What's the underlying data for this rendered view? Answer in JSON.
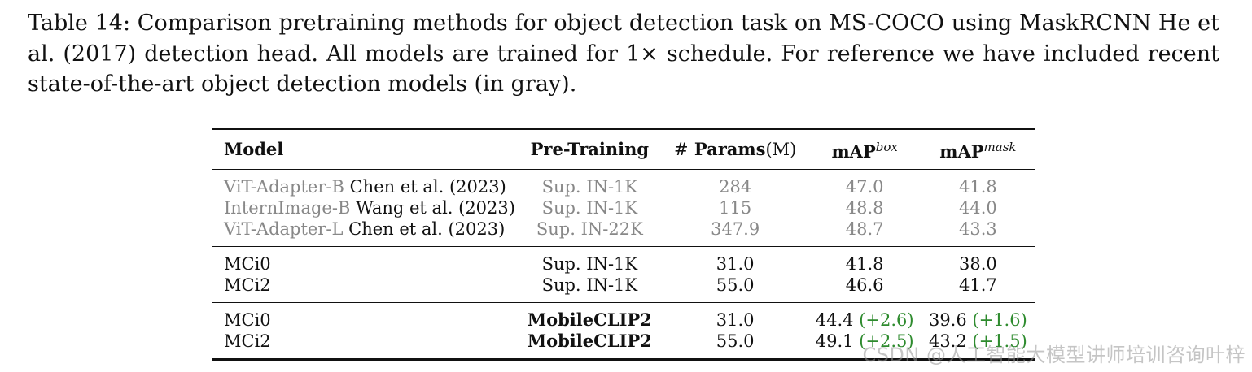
{
  "caption": "Table 14: Comparison pretraining methods for object detection task on MS-COCO using MaskRCNN He et al. (2017) detection head. All models are trained for 1× schedule. For reference we have included recent state-of-the-art object detection models (in gray).",
  "header": {
    "model": "Model",
    "pretraining": "Pre-Training",
    "params_hash": "#",
    "params_label": "Params",
    "params_unit": "(M)",
    "map_label": "mAP",
    "box_sup": "box",
    "mask_sup": "mask"
  },
  "colors": {
    "gray_rows": "#888888",
    "gain": "#2e8b2e",
    "watermark": "#969696"
  },
  "sota_rows": [
    {
      "model": "ViT-Adapter-B",
      "ref": "Chen et al. (2023)",
      "pretraining": "Sup. IN-1K",
      "params": "284",
      "box": "47.0",
      "mask": "41.8"
    },
    {
      "model": "InternImage-B",
      "ref": "Wang et al. (2023)",
      "pretraining": "Sup. IN-1K",
      "params": "115",
      "box": "48.8",
      "mask": "44.0"
    },
    {
      "model": "ViT-Adapter-L",
      "ref": "Chen et al. (2023)",
      "pretraining": "Sup. IN-22K",
      "params": "347.9",
      "box": "48.7",
      "mask": "43.3"
    }
  ],
  "sup_rows": [
    {
      "model": "MCi0",
      "pretraining": "Sup. IN-1K",
      "params": "31.0",
      "box": "41.8",
      "mask": "38.0"
    },
    {
      "model": "MCi2",
      "pretraining": "Sup. IN-1K",
      "params": "55.0",
      "box": "46.6",
      "mask": "41.7"
    }
  ],
  "clip_rows": [
    {
      "model": "MCi0",
      "pretraining": "MobileCLIP2",
      "params": "31.0",
      "box": "44.4",
      "box_gain": "(+2.6)",
      "mask": "39.6",
      "mask_gain": "(+1.6)"
    },
    {
      "model": "MCi2",
      "pretraining": "MobileCLIP2",
      "params": "55.0",
      "box": "49.1",
      "box_gain": "(+2.5)",
      "mask": "43.2",
      "mask_gain": "(+1.5)"
    }
  ],
  "watermark": "CSDN @人工智能大模型讲师培训咨询叶梓"
}
